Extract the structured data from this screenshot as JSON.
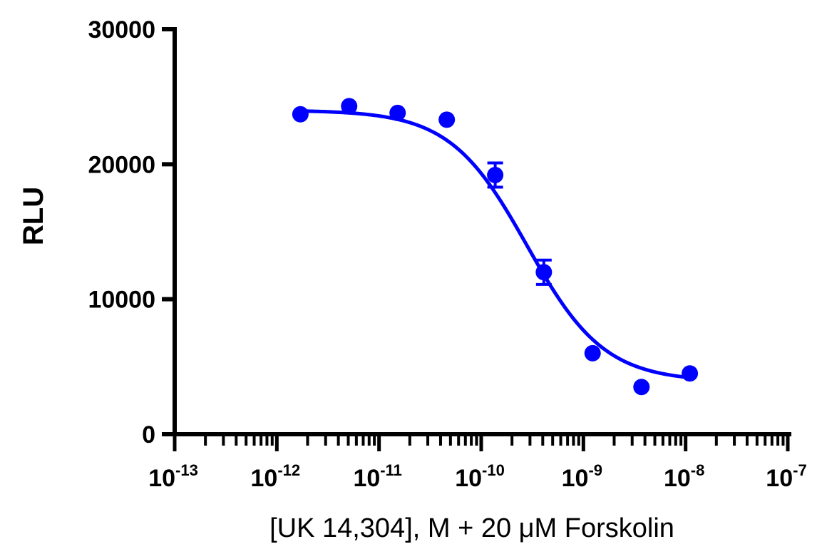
{
  "chart_data": {
    "type": "scatter",
    "xlabel": "[UK 14,304], M + 20 μM Forskolin",
    "ylabel": "RLU",
    "x_scale": "log",
    "xlim": [
      1e-13,
      1e-07
    ],
    "ylim": [
      0,
      30000
    ],
    "y_ticks": [
      "0",
      "10000",
      "20000",
      "30000"
    ],
    "x_ticks": [
      {
        "base": "10",
        "exp": "-13"
      },
      {
        "base": "10",
        "exp": "-12"
      },
      {
        "base": "10",
        "exp": "-11"
      },
      {
        "base": "10",
        "exp": "-10"
      },
      {
        "base": "10",
        "exp": "-9"
      },
      {
        "base": "10",
        "exp": "-8"
      },
      {
        "base": "10",
        "exp": "-7"
      }
    ],
    "grid": false,
    "series": [
      {
        "color": "#0000ff",
        "x": [
          1.7e-12,
          5.1e-12,
          1.52e-11,
          4.6e-11,
          1.37e-10,
          4.1e-10,
          1.23e-09,
          3.7e-09,
          1.1e-08
        ],
        "y": [
          23700,
          24300,
          23800,
          23300,
          19200,
          12000,
          6000,
          3500,
          4500
        ],
        "yerr": [
          0,
          0,
          0,
          0,
          900,
          900,
          0,
          0,
          0
        ]
      }
    ],
    "fit": {
      "color": "#0000ff",
      "top": 24000,
      "bottom": 3900,
      "log_ic50": -9.55,
      "hill_slope": -1.15
    }
  }
}
